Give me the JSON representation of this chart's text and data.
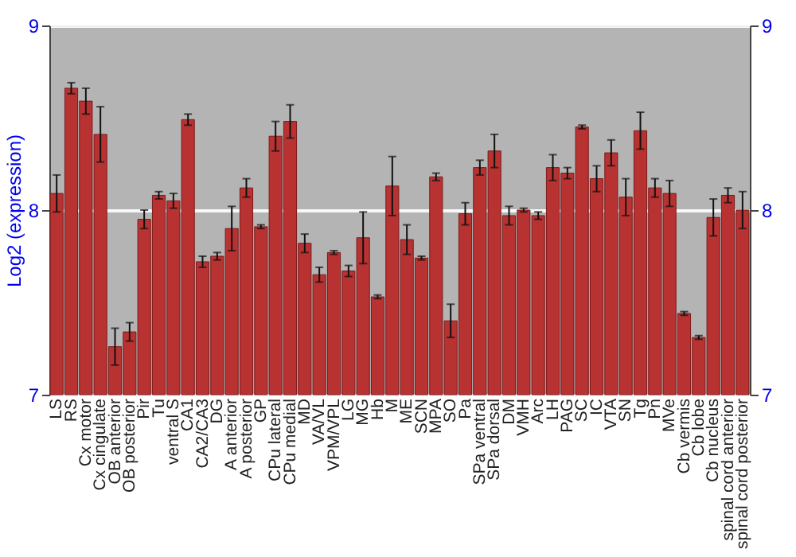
{
  "chart_data": {
    "type": "bar",
    "ylabel": "Log2 (expression)",
    "categories": [
      "LS",
      "RS",
      "Cx motor",
      "Cx cingulate",
      "OB anterior",
      "OB posterior",
      "Pir",
      "Tu",
      "ventral S",
      "CA1",
      "CA2/CA3",
      "DG",
      "A anterior",
      "A posterior",
      "GP",
      "CPu lateral",
      "CPu medial",
      "MD",
      "VA/VL",
      "VPM/VPL",
      "LG",
      "MG",
      "Hb",
      "M",
      "ME",
      "SCN",
      "MPA",
      "SO",
      "Pa",
      "SPa ventral",
      "SPa dorsal",
      "DM",
      "VMH",
      "Arc",
      "LH",
      "PAG",
      "SC",
      "IC",
      "VTA",
      "SN",
      "Tg",
      "Pn",
      "MVe",
      "Cb vermis",
      "Cb lobe",
      "Cb nucleus",
      "spinal cord anterior",
      "spinal cord posterior"
    ],
    "values": [
      8.09,
      8.66,
      8.59,
      8.41,
      7.26,
      7.34,
      7.95,
      8.08,
      8.05,
      8.49,
      7.72,
      7.75,
      7.9,
      8.12,
      7.91,
      8.4,
      8.48,
      7.82,
      7.65,
      7.77,
      7.67,
      7.85,
      7.53,
      8.13,
      7.84,
      7.74,
      8.18,
      7.4,
      7.98,
      8.23,
      8.32,
      7.97,
      8.0,
      7.97,
      8.23,
      8.2,
      8.45,
      8.17,
      8.31,
      8.07,
      8.43,
      8.12,
      8.09,
      7.44,
      7.31,
      7.96,
      8.08,
      8.0
    ],
    "errors": [
      0.1,
      0.03,
      0.07,
      0.15,
      0.1,
      0.05,
      0.05,
      0.02,
      0.04,
      0.03,
      0.03,
      0.02,
      0.12,
      0.05,
      0.01,
      0.08,
      0.09,
      0.05,
      0.04,
      0.01,
      0.03,
      0.14,
      0.01,
      0.16,
      0.08,
      0.01,
      0.02,
      0.09,
      0.06,
      0.04,
      0.09,
      0.05,
      0.01,
      0.02,
      0.07,
      0.03,
      0.01,
      0.07,
      0.07,
      0.1,
      0.1,
      0.05,
      0.07,
      0.01,
      0.01,
      0.1,
      0.04,
      0.1
    ],
    "color": "#b83232",
    "ylim": [
      7,
      9
    ],
    "yticks": [
      7,
      8,
      9
    ],
    "y2lim": [
      7,
      9
    ],
    "y2ticks": [
      7,
      8,
      9
    ],
    "grid": "y"
  }
}
